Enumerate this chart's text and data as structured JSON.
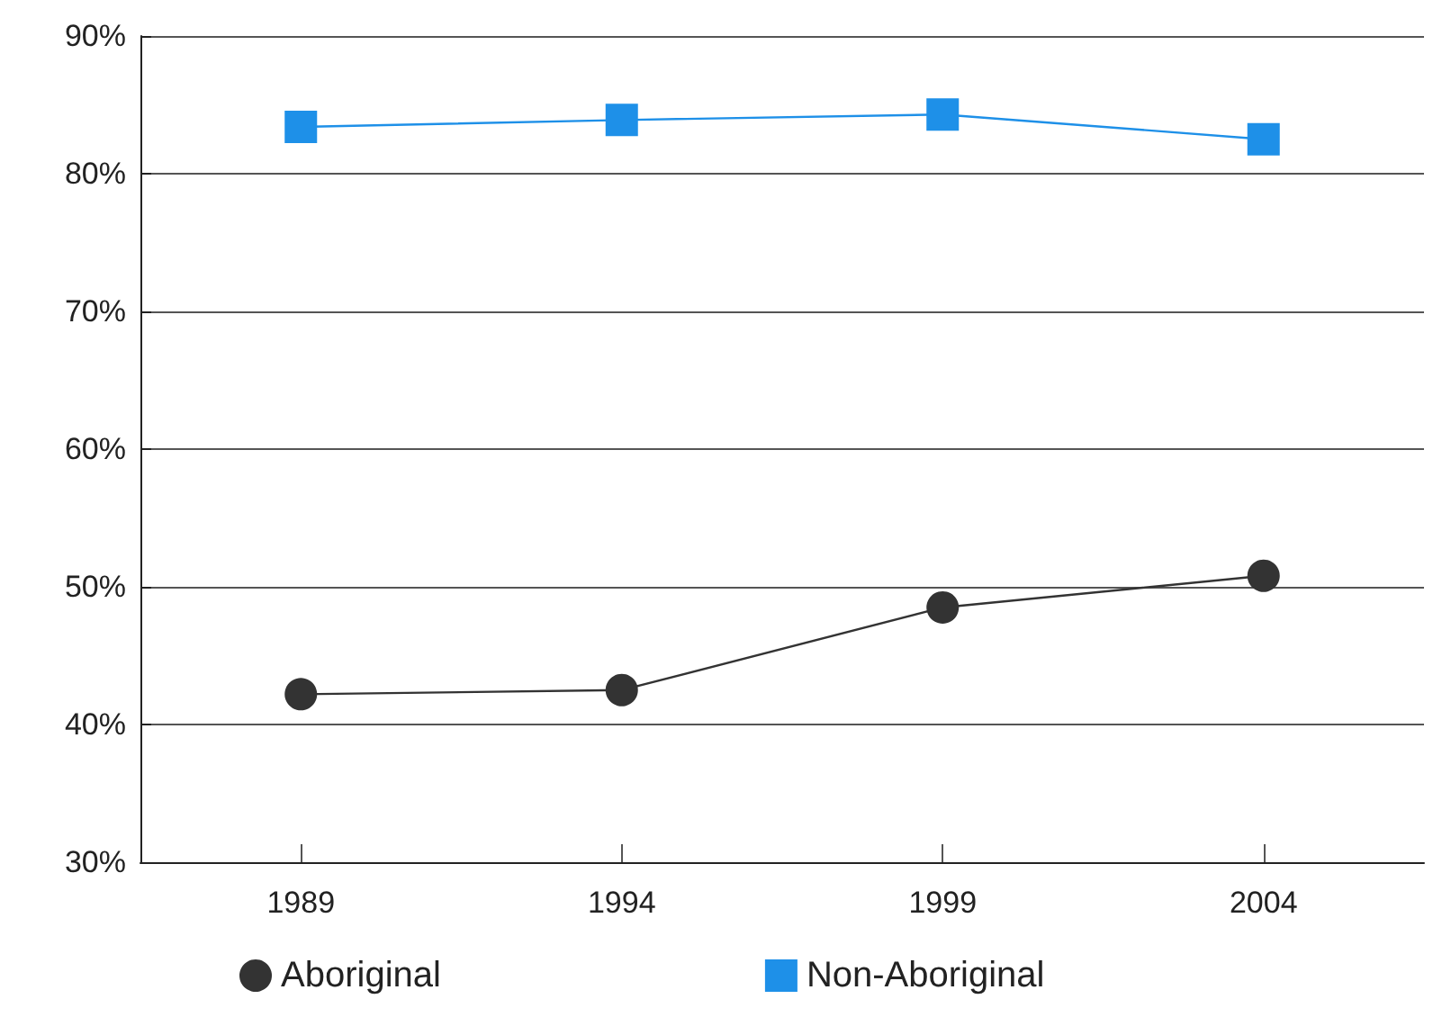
{
  "chart_data": {
    "type": "line",
    "categories": [
      "1989",
      "1994",
      "1999",
      "2004"
    ],
    "series": [
      {
        "name": "Aboriginal",
        "color": "#333333",
        "marker": "circle",
        "values": [
          42.2,
          42.5,
          48.5,
          50.8
        ]
      },
      {
        "name": "Non-Aboriginal",
        "color": "#1e90e8",
        "marker": "square",
        "values": [
          83.4,
          83.9,
          84.3,
          82.5
        ]
      }
    ],
    "ylim": [
      30,
      90
    ],
    "yticks": [
      {
        "value": 30,
        "label": "30%"
      },
      {
        "value": 40,
        "label": "40%"
      },
      {
        "value": 50,
        "label": "50%"
      },
      {
        "value": 60,
        "label": "60%"
      },
      {
        "value": 70,
        "label": "70%"
      },
      {
        "value": 80,
        "label": "80%"
      },
      {
        "value": 90,
        "label": "90%"
      }
    ],
    "grid": "y",
    "legend": "bottom"
  }
}
